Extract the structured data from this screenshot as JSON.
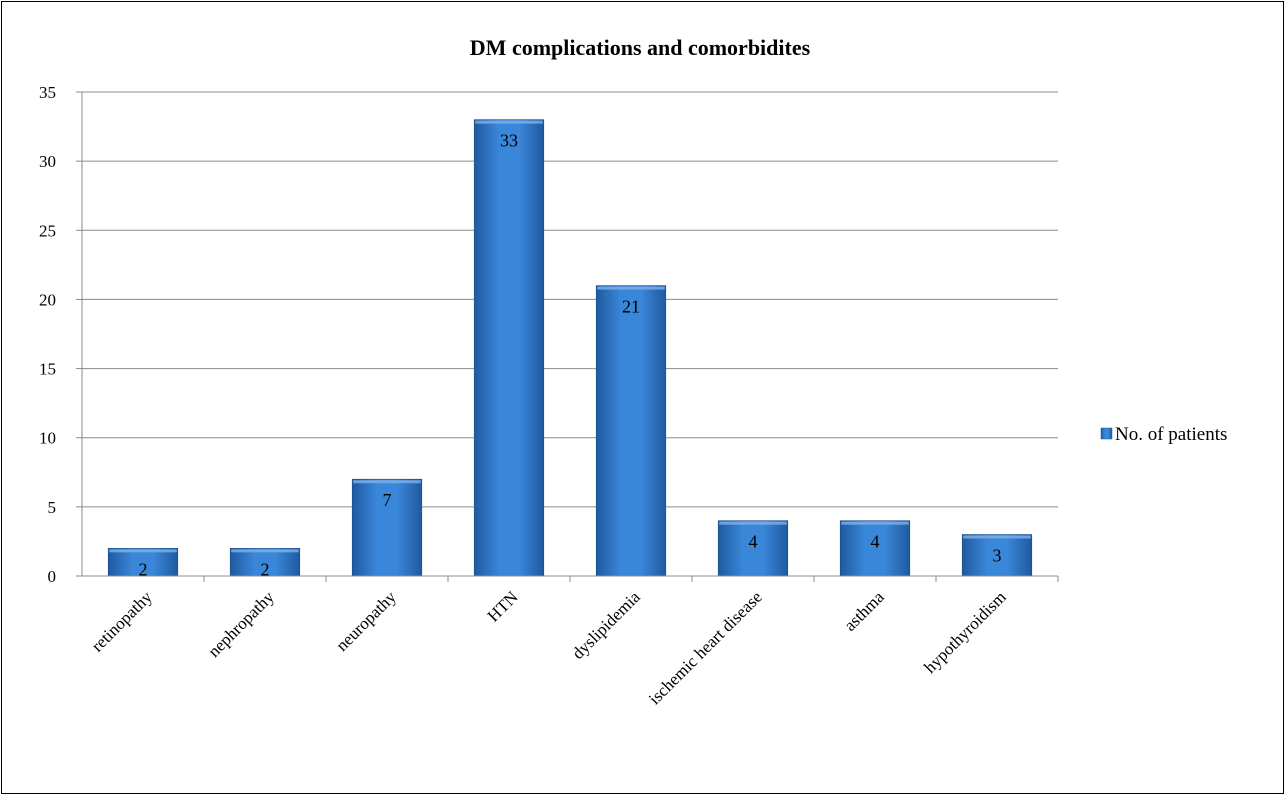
{
  "chart_data": {
    "type": "bar",
    "title": "DM complications and comorbidites",
    "xlabel": "",
    "ylabel": "",
    "categories": [
      "retinopathy",
      "nephropathy",
      "neuropathy",
      "HTN",
      "dyslipidemia",
      "ischemic heart disease",
      "asthma",
      "hypothyroidism"
    ],
    "series": [
      {
        "name": "No. of patients",
        "values": [
          2,
          2,
          7,
          33,
          21,
          4,
          4,
          3
        ],
        "color": "#2E75C6"
      }
    ],
    "ylim": [
      0,
      35
    ],
    "yticks": [
      0,
      5,
      10,
      15,
      20,
      25,
      30,
      35
    ],
    "grid": true,
    "legend_position": "right",
    "data_labels": true
  }
}
